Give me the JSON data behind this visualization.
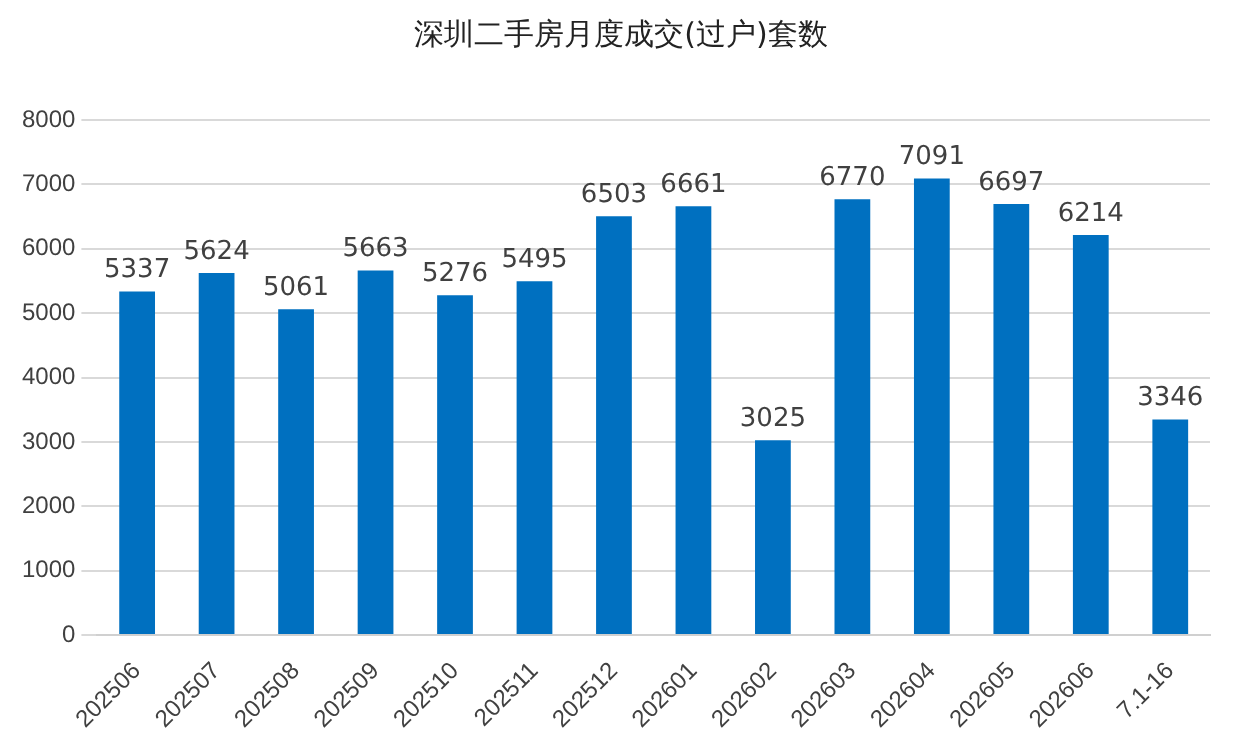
{
  "chart_data": {
    "type": "bar",
    "title": "深圳二手房月度成交(过户)套数",
    "categories": [
      "202506",
      "202507",
      "202508",
      "202509",
      "202510",
      "202511",
      "202512",
      "202601",
      "202602",
      "202603",
      "202604",
      "202605",
      "202606",
      "7.1-16"
    ],
    "values": [
      5337,
      5624,
      5061,
      5663,
      5276,
      5495,
      6503,
      6661,
      3025,
      6770,
      7091,
      6697,
      6214,
      3346
    ],
    "color": "#0070c0",
    "ylim": [
      0,
      8000
    ],
    "yticks": [
      0,
      1000,
      2000,
      3000,
      4000,
      5000,
      6000,
      7000,
      8000
    ],
    "grid": "y",
    "data_labels": true,
    "legend": false
  }
}
